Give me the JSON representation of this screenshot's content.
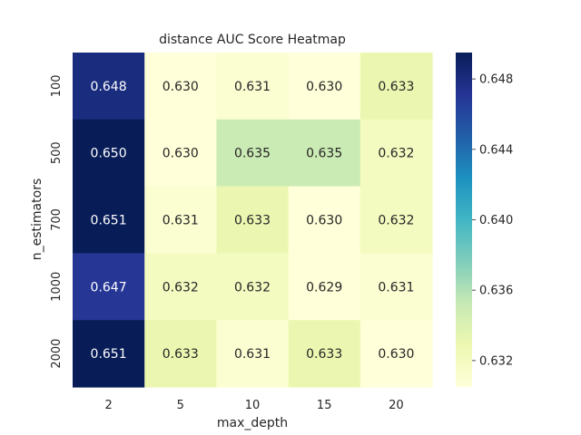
{
  "chart_data": {
    "type": "heatmap",
    "title": "distance AUC Score Heatmap",
    "xlabel": "max_depth",
    "ylabel": "n_estimators",
    "x_categories": [
      "2",
      "5",
      "10",
      "15",
      "20"
    ],
    "y_categories": [
      "100",
      "500",
      "700",
      "1000",
      "2000"
    ],
    "values": [
      [
        0.648,
        0.63,
        0.631,
        0.63,
        0.633
      ],
      [
        0.65,
        0.63,
        0.635,
        0.635,
        0.632
      ],
      [
        0.651,
        0.631,
        0.633,
        0.63,
        0.632
      ],
      [
        0.647,
        0.632,
        0.632,
        0.629,
        0.631
      ],
      [
        0.651,
        0.633,
        0.631,
        0.633,
        0.63
      ]
    ],
    "cell_labels": [
      [
        "0.648",
        "0.630",
        "0.631",
        "0.630",
        "0.633"
      ],
      [
        "0.650",
        "0.630",
        "0.635",
        "0.635",
        "0.632"
      ],
      [
        "0.651",
        "0.631",
        "0.633",
        "0.630",
        "0.632"
      ],
      [
        "0.647",
        "0.632",
        "0.632",
        "0.629",
        "0.631"
      ],
      [
        "0.651",
        "0.633",
        "0.631",
        "0.633",
        "0.630"
      ]
    ],
    "colormap": "YlGnBu",
    "color_range": [
      0.6305,
      0.6495
    ],
    "colorbar_ticks": [
      0.632,
      0.636,
      0.64,
      0.644,
      0.648
    ],
    "colorbar_tick_labels": [
      "0.632",
      "0.636",
      "0.640",
      "0.644",
      "0.648"
    ],
    "colors": {
      "low": "#ffffd9",
      "high": "#081d58"
    }
  }
}
